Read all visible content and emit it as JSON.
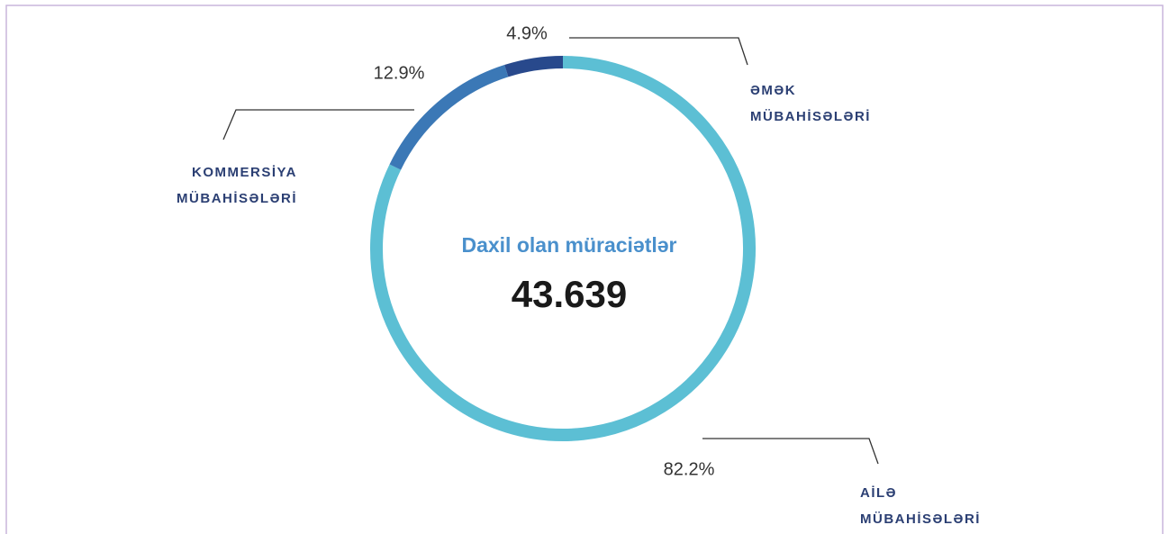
{
  "chart_data": {
    "type": "donut",
    "title": "Daxil olan müraciətlər",
    "total": "43.639",
    "categories": [
      [
        "AİLƏ",
        "MÜBAHİSƏLƏRİ"
      ],
      [
        "KOMMERSİYA",
        "MÜBAHİSƏLƏRİ"
      ],
      [
        "ƏMƏK",
        "MÜBAHİSƏLƏRİ"
      ]
    ],
    "values": [
      82.2,
      12.9,
      4.9
    ],
    "value_labels": [
      "82.2%",
      "12.9%",
      "4.9%"
    ],
    "colors": [
      "#5cbfd4",
      "#3b78b6",
      "#28498c"
    ]
  }
}
